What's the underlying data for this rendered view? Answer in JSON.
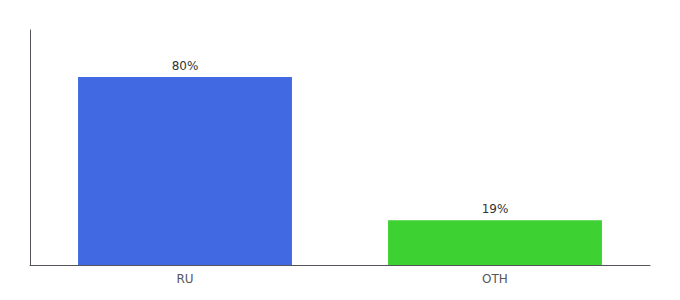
{
  "chart_data": {
    "type": "bar",
    "categories": [
      "RU",
      "OTH"
    ],
    "values": [
      80,
      19
    ],
    "value_labels": [
      "80%",
      "19%"
    ],
    "data_labels": true,
    "colors": [
      "#4169E1",
      "#3DD132"
    ],
    "ylim": [
      0,
      100
    ],
    "tick_labels": "x",
    "grid": false
  }
}
